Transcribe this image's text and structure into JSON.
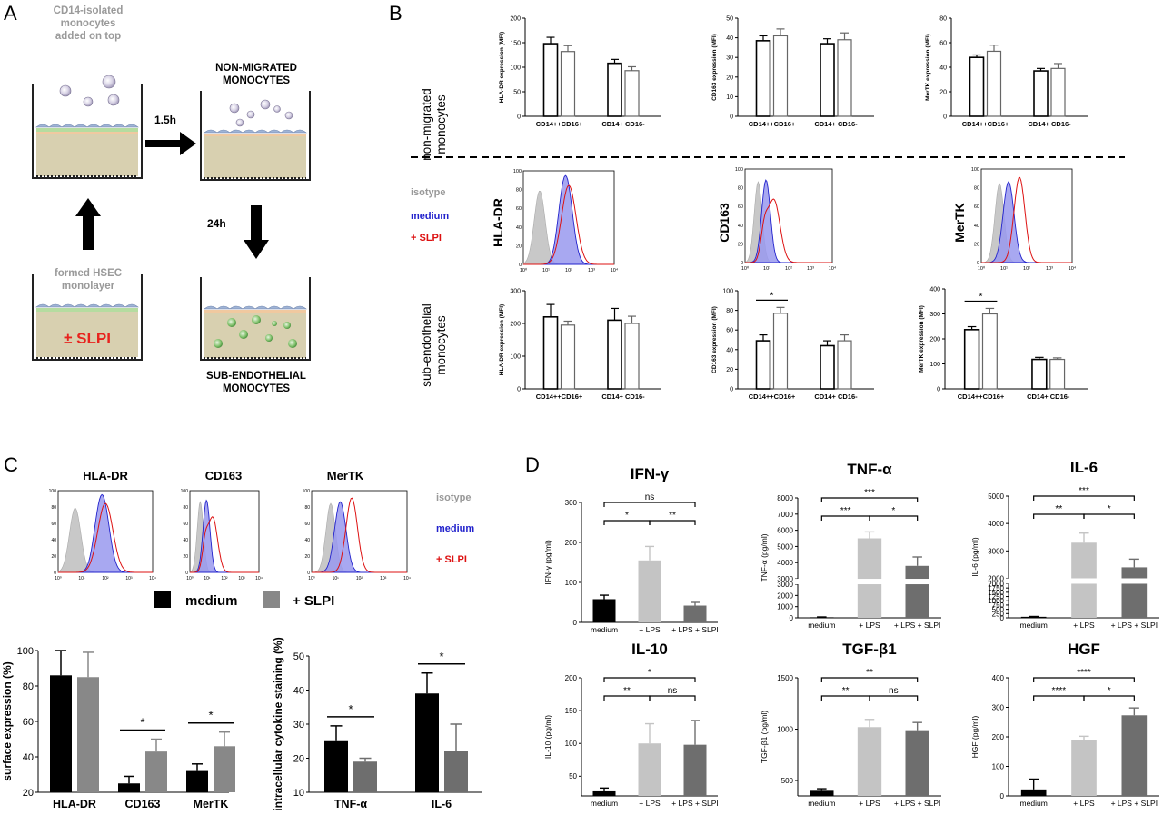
{
  "panels": {
    "A": {
      "letter": "A",
      "labels": {
        "added": [
          "CD14-isolated",
          "monocytes",
          "added on top"
        ],
        "nonmigrated": [
          "NON-MIGRATED",
          "MONOCYTES"
        ],
        "time1": "1.5h",
        "time2": "24h",
        "formed": [
          "formed HSEC",
          "monolayer"
        ],
        "slpi": "± SLPI",
        "subendo": [
          "SUB-ENDOTHELIAL",
          "MONOCYTES"
        ]
      }
    },
    "B": {
      "letter": "B",
      "row1_label": [
        "non-migrated",
        "monocytes"
      ],
      "row3_label": [
        "sub-endothelial",
        "monocytes"
      ],
      "legend": [
        "isotype",
        "medium",
        "+ SLPI"
      ],
      "hist_labels": [
        "HLA-DR",
        "CD163",
        "MerTK"
      ]
    },
    "C": {
      "letter": "C",
      "hist_titles": [
        "HLA-DR",
        "CD163",
        "MerTK"
      ],
      "legend": [
        "isotype",
        "medium",
        "+ SLPI"
      ],
      "bar_legend": [
        "medium",
        "+ SLPI"
      ]
    },
    "D": {
      "letter": "D"
    }
  },
  "colors": {
    "isotype": "#c8c8c8",
    "medium_fill": "#9999ee",
    "medium_line": "#2222cc",
    "slpi_line": "#dd1111",
    "black": "#000000",
    "grey": "#888888",
    "dark_grey": "#6e6e6e",
    "light_grey": "#c4c4c4"
  },
  "chart_data": [
    {
      "id": "B1",
      "type": "bar",
      "ylabel": "HLA-DR expression (MFI)",
      "categories": [
        "CD14++CD16+",
        "CD14+ CD16-"
      ],
      "ylim": [
        0,
        200
      ],
      "ticks": [
        0,
        50,
        100,
        150,
        200
      ],
      "series": [
        {
          "values": [
            148,
            108
          ],
          "err": [
            13,
            8
          ]
        },
        {
          "values": [
            132,
            93
          ],
          "err": [
            12,
            8
          ]
        }
      ],
      "style": "open",
      "sig": []
    },
    {
      "id": "B2",
      "type": "bar",
      "ylabel": "CD163 expression (MFI)",
      "categories": [
        "CD14++CD16+",
        "CD14+ CD16-"
      ],
      "ylim": [
        0,
        50
      ],
      "ticks": [
        0,
        10,
        20,
        30,
        40,
        50
      ],
      "series": [
        {
          "values": [
            38.5,
            37
          ],
          "err": [
            2.5,
            2.5
          ]
        },
        {
          "values": [
            41,
            39
          ],
          "err": [
            3.5,
            3.5
          ]
        }
      ],
      "style": "open",
      "sig": []
    },
    {
      "id": "B3",
      "type": "bar",
      "ylabel": "MerTK expression (MFI)",
      "categories": [
        "CD14++CD16+",
        "CD14+ CD16-"
      ],
      "ylim": [
        0,
        80
      ],
      "ticks": [
        0,
        20,
        40,
        60,
        80
      ],
      "series": [
        {
          "values": [
            48,
            37
          ],
          "err": [
            2,
            2
          ]
        },
        {
          "values": [
            53,
            39
          ],
          "err": [
            5,
            4
          ]
        }
      ],
      "style": "open",
      "sig": []
    },
    {
      "id": "B4",
      "type": "bar",
      "ylabel": "HLA-DR expression (MFI)",
      "categories": [
        "CD14++CD16+",
        "CD14+ CD16-"
      ],
      "ylim": [
        0,
        300
      ],
      "ticks": [
        0,
        100,
        200,
        300
      ],
      "series": [
        {
          "values": [
            220,
            210
          ],
          "err": [
            38,
            36
          ]
        },
        {
          "values": [
            195,
            200
          ],
          "err": [
            12,
            22
          ]
        }
      ],
      "style": "open",
      "sig": []
    },
    {
      "id": "B5",
      "type": "bar",
      "ylabel": "CD163 expression (MFI)",
      "categories": [
        "CD14++CD16+",
        "CD14+ CD16-"
      ],
      "ylim": [
        0,
        100
      ],
      "ticks": [
        0,
        20,
        40,
        60,
        80,
        100
      ],
      "series": [
        {
          "values": [
            49,
            44
          ],
          "err": [
            6,
            5
          ]
        },
        {
          "values": [
            77,
            49
          ],
          "err": [
            6,
            6
          ]
        }
      ],
      "style": "open",
      "sig": [
        {
          "a": [
            0,
            0
          ],
          "b": [
            0,
            1
          ],
          "text": "*"
        }
      ]
    },
    {
      "id": "B6",
      "type": "bar",
      "ylabel": "MerTK expression (MFI)",
      "categories": [
        "CD14++CD16+",
        "CD14+ CD16-"
      ],
      "ylim": [
        0,
        400
      ],
      "ticks": [
        0,
        100,
        200,
        300,
        400
      ],
      "series": [
        {
          "values": [
            237,
            118
          ],
          "err": [
            12,
            8
          ]
        },
        {
          "values": [
            300,
            118
          ],
          "err": [
            22,
            6
          ]
        }
      ],
      "style": "open",
      "sig": [
        {
          "a": [
            0,
            0
          ],
          "b": [
            0,
            1
          ],
          "text": "*"
        }
      ]
    },
    {
      "id": "C1",
      "type": "bar",
      "ylabel": "surface expression (%)",
      "categories": [
        "HLA-DR",
        "CD163",
        "MerTK"
      ],
      "ylim": [
        20,
        100
      ],
      "ticks": [
        20,
        40,
        60,
        80,
        100
      ],
      "series": [
        {
          "name": "medium",
          "values": [
            86,
            25,
            32
          ],
          "err": [
            14,
            4,
            4
          ]
        },
        {
          "name": "+ SLPI",
          "values": [
            85,
            43,
            46
          ],
          "err": [
            14,
            7,
            8
          ]
        }
      ],
      "style": "filled",
      "sig": [
        {
          "a": [
            1,
            0
          ],
          "b": [
            1,
            1
          ],
          "text": "*"
        },
        {
          "a": [
            2,
            0
          ],
          "b": [
            2,
            1
          ],
          "text": "*"
        }
      ]
    },
    {
      "id": "C2",
      "type": "bar",
      "ylabel": "intracellular cytokine staining (%)",
      "categories": [
        "TNF-α",
        "IL-6"
      ],
      "ylim": [
        10,
        50
      ],
      "ticks": [
        10,
        20,
        30,
        40,
        50
      ],
      "series": [
        {
          "name": "medium",
          "values": [
            25,
            39
          ],
          "err": [
            4.5,
            6
          ]
        },
        {
          "name": "+ SLPI",
          "values": [
            19,
            22
          ],
          "err": [
            1,
            8
          ]
        }
      ],
      "style": "filled",
      "sig": [
        {
          "a": [
            0,
            0
          ],
          "b": [
            0,
            1
          ],
          "text": "*"
        },
        {
          "a": [
            1,
            0
          ],
          "b": [
            1,
            1
          ],
          "text": "*"
        }
      ]
    },
    {
      "id": "D1",
      "type": "bar",
      "title": "IFN-γ",
      "ylabel": "IFN-γ (pg/ml)",
      "categories": [
        "medium",
        "+ LPS",
        "+ LPS + SLPI"
      ],
      "ylim": [
        0,
        300
      ],
      "ticks": [
        0,
        100,
        200,
        300
      ],
      "values": [
        58,
        155,
        42
      ],
      "err": [
        10,
        35,
        8
      ],
      "sig": [
        {
          "a": 0,
          "b": 1,
          "text": "*",
          "level": 1
        },
        {
          "a": 1,
          "b": 2,
          "text": "**",
          "level": 1
        },
        {
          "a": 0,
          "b": 2,
          "text": "ns",
          "level": 2
        }
      ]
    },
    {
      "id": "D2",
      "type": "bar",
      "title": "TNF-α",
      "ylabel": "TNF-α (pg/ml)",
      "categories": [
        "medium",
        "+ LPS",
        "+ LPS + SLPI"
      ],
      "broken": true,
      "low_ticks": [
        0,
        1000,
        2000,
        3000
      ],
      "high_ticks": [
        3000,
        4000,
        5000,
        6000,
        7000,
        8000
      ],
      "values": [
        50,
        5500,
        3800
      ],
      "err": [
        30,
        400,
        550
      ],
      "sig": [
        {
          "a": 0,
          "b": 1,
          "text": "***",
          "level": 1
        },
        {
          "a": 1,
          "b": 2,
          "text": "*",
          "level": 1
        },
        {
          "a": 0,
          "b": 2,
          "text": "***",
          "level": 2
        }
      ]
    },
    {
      "id": "D3",
      "type": "bar",
      "title": "IL-6",
      "ylabel": "IL-6 (pg/ml)",
      "categories": [
        "medium",
        "+ LPS",
        "+ LPS + SLPI"
      ],
      "broken": true,
      "low_ticks": [
        0,
        250,
        500,
        750,
        1000,
        1250,
        1500,
        1750,
        2000
      ],
      "high_ticks": [
        2000,
        3000,
        4000,
        5000
      ],
      "values": [
        60,
        3300,
        2400
      ],
      "err": [
        20,
        350,
        300
      ],
      "sig": [
        {
          "a": 0,
          "b": 1,
          "text": "**",
          "level": 1
        },
        {
          "a": 1,
          "b": 2,
          "text": "*",
          "level": 1
        },
        {
          "a": 0,
          "b": 2,
          "text": "***",
          "level": 2
        }
      ]
    },
    {
      "id": "D4",
      "type": "bar",
      "title": "IL-10",
      "ylabel": "IL-10 (pg/ml)",
      "categories": [
        "medium",
        "+ LPS",
        "+ LPS + SLPI"
      ],
      "ylim": [
        20,
        200
      ],
      "ticks": [
        50,
        100,
        150,
        200
      ],
      "values": [
        27,
        100,
        98
      ],
      "err": [
        5,
        30,
        37
      ],
      "sig": [
        {
          "a": 0,
          "b": 1,
          "text": "**",
          "level": 1
        },
        {
          "a": 1,
          "b": 2,
          "text": "ns",
          "level": 1
        },
        {
          "a": 0,
          "b": 2,
          "text": "*",
          "level": 2
        }
      ]
    },
    {
      "id": "D5",
      "type": "bar",
      "title": "TGF-β1",
      "ylabel": "TGF-β1 (pg/ml)",
      "categories": [
        "medium",
        "+ LPS",
        "+ LPS + SLPI"
      ],
      "ylim": [
        350,
        1500
      ],
      "ticks": [
        500,
        1000,
        1500
      ],
      "values": [
        400,
        1020,
        990
      ],
      "err": [
        20,
        75,
        75
      ],
      "sig": [
        {
          "a": 0,
          "b": 1,
          "text": "**",
          "level": 1
        },
        {
          "a": 1,
          "b": 2,
          "text": "ns",
          "level": 1
        },
        {
          "a": 0,
          "b": 2,
          "text": "**",
          "level": 2
        }
      ]
    },
    {
      "id": "D6",
      "type": "bar",
      "title": "HGF",
      "ylabel": "HGF (pg/ml)",
      "categories": [
        "medium",
        "+ LPS",
        "+ LPS + SLPI"
      ],
      "ylim": [
        0,
        400
      ],
      "ticks": [
        0,
        100,
        200,
        300,
        400
      ],
      "values": [
        22,
        190,
        273
      ],
      "err": [
        35,
        12,
        25
      ],
      "sig": [
        {
          "a": 0,
          "b": 1,
          "text": "****",
          "level": 1
        },
        {
          "a": 1,
          "b": 2,
          "text": "*",
          "level": 1
        },
        {
          "a": 0,
          "b": 2,
          "text": "****",
          "level": 2
        }
      ]
    },
    {
      "id": "H",
      "type": "histogram",
      "x_ticks": [
        "10⁰",
        "10¹",
        "10²",
        "10³",
        "10⁴"
      ],
      "y_ticks": [
        0,
        20,
        40,
        60,
        80,
        100
      ],
      "markers": [
        "HLA-DR",
        "CD163",
        "MerTK"
      ],
      "series": [
        "isotype",
        "medium",
        "+ SLPI"
      ]
    }
  ]
}
